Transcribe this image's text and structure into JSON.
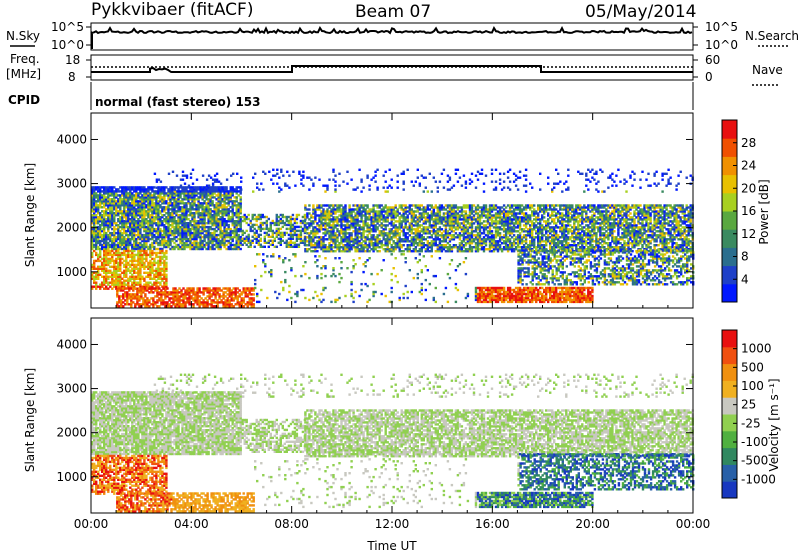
{
  "header": {
    "title": "Pykkvibaer (fitACF)",
    "beam": "Beam 07",
    "date": "05/May/2014"
  },
  "side_labels": {
    "nsky": "N.Sky",
    "freq": "Freq.",
    "freq_unit": "[MHz]",
    "cpid": "CPID",
    "nsearch": "N.Search",
    "nave": "Nave"
  },
  "cpid_text": "normal (fast stereo) 153",
  "status_panels": {
    "noise_ticks": [
      "10^5",
      "10^0"
    ],
    "freq_ticks": [
      "18",
      "8"
    ],
    "nave_ticks": [
      "60",
      "0"
    ]
  },
  "chart_data": [
    {
      "type": "heatmap",
      "name": "power",
      "xlabel": "Time UT",
      "ylabel": "Slant Range [km]",
      "xlim": [
        0,
        24
      ],
      "ylim": [
        180,
        4600
      ],
      "x_ticks": [
        "00:00",
        "04:00",
        "08:00",
        "12:00",
        "16:00",
        "20:00",
        "00:00"
      ],
      "y_ticks": [
        "1000",
        "2000",
        "3000",
        "4000"
      ],
      "colorbar": {
        "label": "Power [dB]",
        "ticks": [
          "28",
          "24",
          "20",
          "16",
          "12",
          "8",
          "4"
        ],
        "colors": [
          "#0018ff",
          "#1e40c8",
          "#2a6e8e",
          "#3a8a60",
          "#5aa840",
          "#a8d020",
          "#e8c000",
          "#f09000",
          "#f05000",
          "#e81010"
        ]
      }
    },
    {
      "type": "heatmap",
      "name": "velocity",
      "xlabel": "Time UT",
      "ylabel": "Slant Range [km]",
      "xlim": [
        0,
        24
      ],
      "ylim": [
        180,
        4600
      ],
      "x_ticks": [
        "00:00",
        "04:00",
        "08:00",
        "12:00",
        "16:00",
        "20:00",
        "00:00"
      ],
      "y_ticks": [
        "1000",
        "2000",
        "3000",
        "4000"
      ],
      "colorbar": {
        "label": "Velocity [m s⁻¹]",
        "ticks": [
          "1000",
          "500",
          "100",
          "25",
          "-25",
          "-100",
          "-500",
          "-1000"
        ],
        "colors": [
          "#1838c0",
          "#2860a8",
          "#308860",
          "#50b040",
          "#90d050",
          "#c8c8c0",
          "#f0b020",
          "#f09010",
          "#f05010",
          "#e81010"
        ]
      }
    }
  ]
}
